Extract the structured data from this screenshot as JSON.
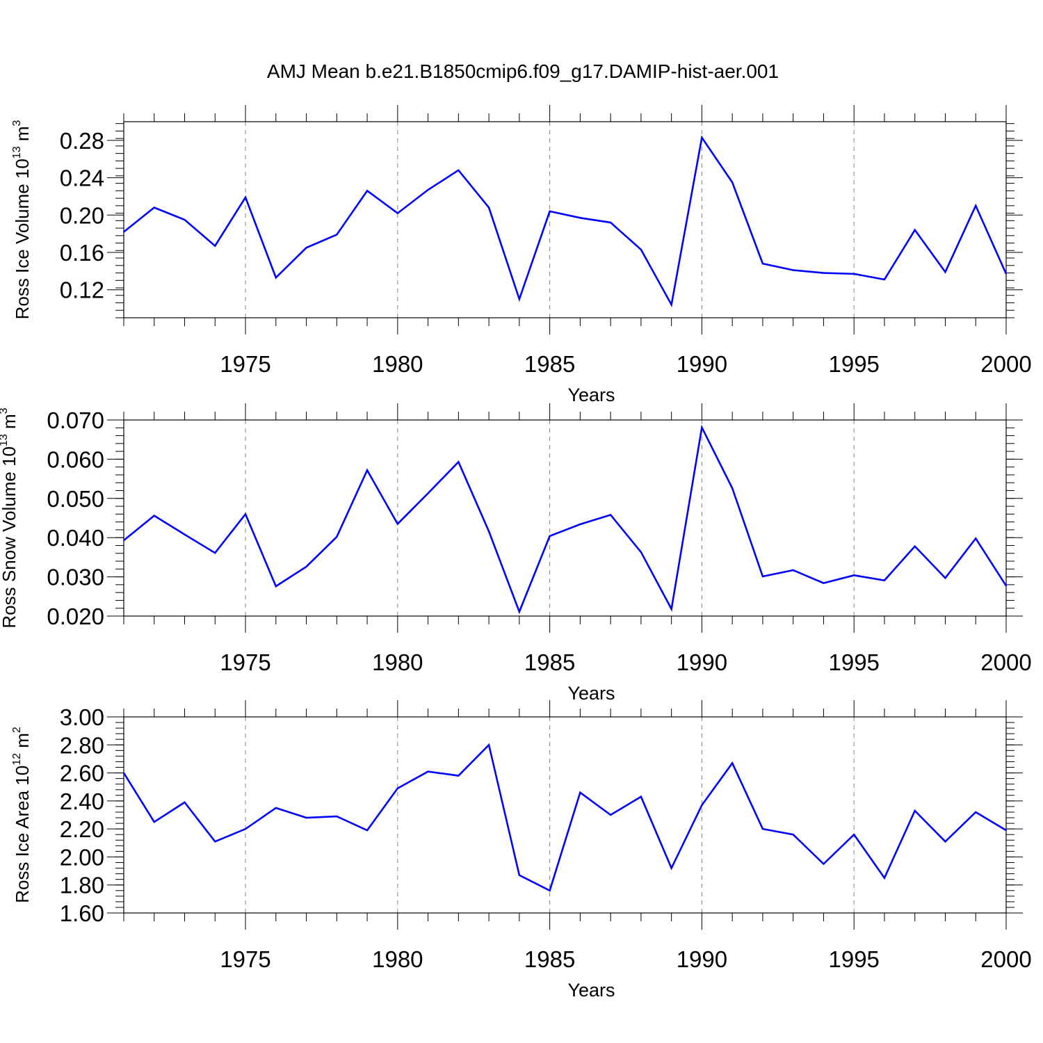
{
  "title": "AMJ Mean b.e21.B1850cmip6.f09_g17.DAMIP-hist-aer.001",
  "colors": {
    "line": "#0000ff",
    "axis": "#000000",
    "grid": "#808080",
    "background": "#ffffff"
  },
  "chart_data": [
    {
      "type": "line",
      "ylabel": {
        "main": "Ross Ice Volume 10",
        "exp": "13",
        "unit": "m",
        "unit_exp": "3"
      },
      "xlabel": "Years",
      "xlim": [
        1971,
        2000
      ],
      "ylim": [
        0.09,
        0.3
      ],
      "y_ticks": [
        "0.12",
        "0.16",
        "0.20",
        "0.24",
        "0.28"
      ],
      "x_ticks": [
        "1975",
        "1980",
        "1985",
        "1990",
        "1995",
        "2000"
      ],
      "grid": "vertical dashed at major x ticks",
      "x": [
        1971,
        1972,
        1973,
        1974,
        1975,
        1976,
        1977,
        1978,
        1979,
        1980,
        1981,
        1982,
        1983,
        1984,
        1985,
        1986,
        1987,
        1988,
        1989,
        1990,
        1991,
        1992,
        1993,
        1994,
        1995,
        1996,
        1997,
        1998,
        1999,
        2000
      ],
      "series": [
        {
          "values": [
            0.182,
            0.208,
            0.195,
            0.167,
            0.219,
            0.133,
            0.165,
            0.179,
            0.226,
            0.202,
            0.227,
            0.248,
            0.208,
            0.11,
            0.204,
            0.197,
            0.192,
            0.163,
            0.104,
            0.283,
            0.235,
            0.148,
            0.141,
            0.138,
            0.137,
            0.131,
            0.184,
            0.139,
            0.21,
            0.137
          ]
        }
      ]
    },
    {
      "type": "line",
      "ylabel": {
        "main": "Ross Snow Volume 10",
        "exp": "13",
        "unit": "m",
        "unit_exp": "3"
      },
      "xlabel": "Years",
      "xlim": [
        1971,
        2000
      ],
      "ylim": [
        0.02,
        0.07
      ],
      "y_ticks": [
        "0.020",
        "0.030",
        "0.040",
        "0.050",
        "0.060",
        "0.070"
      ],
      "x_ticks": [
        "1975",
        "1980",
        "1985",
        "1990",
        "1995",
        "2000"
      ],
      "grid": "vertical dashed at major x ticks",
      "x": [
        1971,
        1972,
        1973,
        1974,
        1975,
        1976,
        1977,
        1978,
        1979,
        1980,
        1981,
        1982,
        1983,
        1984,
        1985,
        1986,
        1987,
        1988,
        1989,
        1990,
        1991,
        1992,
        1993,
        1994,
        1995,
        1996,
        1997,
        1998,
        1999,
        2000
      ],
      "series": [
        {
          "values": [
            0.0393,
            0.0456,
            0.0408,
            0.0361,
            0.046,
            0.0276,
            0.0326,
            0.0402,
            0.0572,
            0.0435,
            0.0513,
            0.0593,
            0.0416,
            0.0211,
            0.0404,
            0.0434,
            0.0458,
            0.0363,
            0.0218,
            0.0681,
            0.0526,
            0.0301,
            0.0317,
            0.0284,
            0.0304,
            0.0291,
            0.0378,
            0.0297,
            0.0398,
            0.0277
          ]
        }
      ]
    },
    {
      "type": "line",
      "ylabel": {
        "main": "Ross Ice Area 10",
        "exp": "12",
        "unit": "m",
        "unit_exp": "2"
      },
      "xlabel": "Years",
      "xlim": [
        1971,
        2000
      ],
      "ylim": [
        1.6,
        3.0
      ],
      "y_ticks": [
        "1.60",
        "1.80",
        "2.00",
        "2.20",
        "2.40",
        "2.60",
        "2.80",
        "3.00"
      ],
      "x_ticks": [
        "1975",
        "1980",
        "1985",
        "1990",
        "1995",
        "2000"
      ],
      "grid": "vertical dashed at major x ticks",
      "x": [
        1971,
        1972,
        1973,
        1974,
        1975,
        1976,
        1977,
        1978,
        1979,
        1980,
        1981,
        1982,
        1983,
        1984,
        1985,
        1986,
        1987,
        1988,
        1989,
        1990,
        1991,
        1992,
        1993,
        1994,
        1995,
        1996,
        1997,
        1998,
        1999,
        2000
      ],
      "series": [
        {
          "values": [
            2.6,
            2.25,
            2.39,
            2.11,
            2.2,
            2.35,
            2.28,
            2.29,
            2.19,
            2.49,
            2.61,
            2.58,
            2.8,
            1.87,
            1.76,
            2.46,
            2.3,
            2.43,
            1.92,
            2.37,
            2.67,
            2.2,
            2.16,
            1.95,
            2.16,
            1.85,
            2.33,
            2.11,
            2.32,
            2.19
          ]
        }
      ]
    }
  ]
}
